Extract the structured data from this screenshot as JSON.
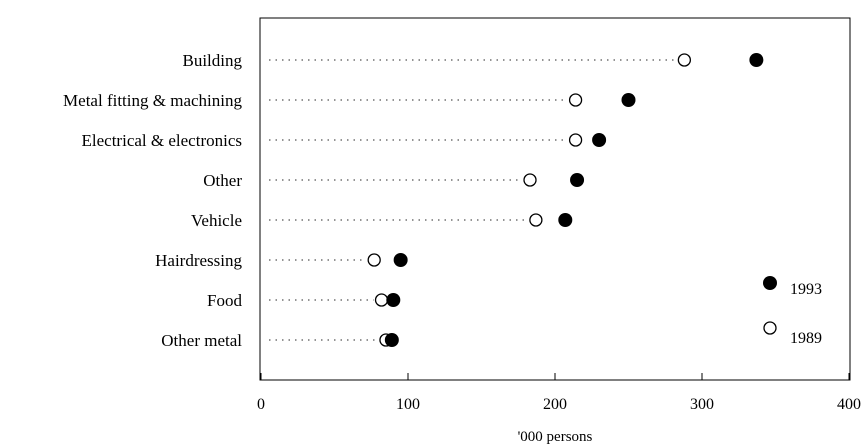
{
  "chart_data": {
    "type": "scatter",
    "title": "",
    "xlabel": "'000 persons",
    "ylabel": "",
    "xlim": [
      0,
      400
    ],
    "xticks": [
      0,
      100,
      200,
      300,
      400
    ],
    "grid": false,
    "legend_position": "right",
    "categories": [
      "Building",
      "Metal fitting & machining",
      "Electrical & electronics",
      "Other",
      "Vehicle",
      "Hairdressing",
      "Food",
      "Other metal"
    ],
    "series": [
      {
        "name": "1993",
        "marker": "filled-circle",
        "values": [
          337,
          250,
          230,
          215,
          207,
          95,
          90,
          89
        ]
      },
      {
        "name": "1989",
        "marker": "open-circle",
        "values": [
          288,
          214,
          214,
          183,
          187,
          77,
          82,
          85
        ]
      }
    ],
    "colors": {
      "marker": "#000000",
      "axis": "#000000",
      "dots": "#555555"
    }
  }
}
